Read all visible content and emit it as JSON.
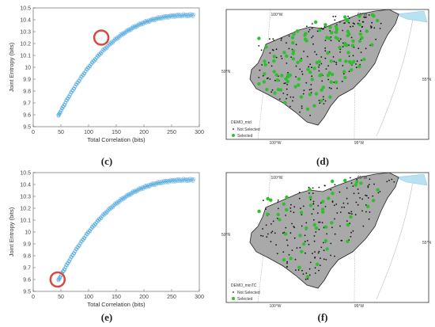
{
  "captions": [
    "(c)",
    "(d)",
    "(e)",
    "(f)"
  ],
  "chart_data": [
    {
      "type": "scatter",
      "panel": "(c)",
      "xlabel": "Total Correlation (bits)",
      "ylabel": "Joint Entropy (bits)",
      "xlim": [
        0,
        300
      ],
      "ylim": [
        9.5,
        10.5
      ],
      "xticks": [
        0,
        50,
        100,
        150,
        200,
        250,
        300
      ],
      "yticks": [
        9.5,
        9.6,
        9.7,
        9.8,
        9.9,
        10,
        10.1,
        10.2,
        10.3,
        10.4,
        10.5
      ],
      "series": [
        {
          "marker_color": "#3a9cd6",
          "x_range": [
            45,
            290
          ]
        }
      ],
      "highlight": {
        "x": 123,
        "y": 10.25,
        "color": "#d9473f"
      }
    },
    {
      "type": "scatter",
      "panel": "(e)",
      "xlabel": "Total Correlation (bits)",
      "ylabel": "Joint Entropy (bits)",
      "xlim": [
        0,
        300
      ],
      "ylim": [
        9.5,
        10.5
      ],
      "xticks": [
        0,
        50,
        100,
        150,
        200,
        250,
        300
      ],
      "yticks": [
        9.5,
        9.6,
        9.7,
        9.8,
        9.9,
        10,
        10.1,
        10.2,
        10.3,
        10.4,
        10.5
      ],
      "series": [
        {
          "marker_color": "#3a9cd6",
          "x_range": [
            45,
            290
          ]
        }
      ],
      "highlight": {
        "x": 44,
        "y": 9.6,
        "color": "#d9473f"
      }
    }
  ],
  "maps": [
    {
      "panel": "(d)",
      "lon_labels": [
        "100°W",
        "95°W"
      ],
      "lat_labels": [
        "50°N",
        "55°N"
      ],
      "legend_title": "DEMO_mid",
      "legend_not_selected": "Not Selected",
      "legend_selected": "Selected",
      "selected_color": "#2ec02e",
      "selected_count": 110
    },
    {
      "panel": "(f)",
      "lon_labels": [
        "100°W",
        "95°W"
      ],
      "lat_labels": [
        "50°N",
        "55°N"
      ],
      "legend_title": "DEMO_minTC",
      "legend_not_selected": "Not Selected",
      "legend_selected": "Selected",
      "selected_color": "#2ec02e",
      "selected_count": 45
    }
  ]
}
